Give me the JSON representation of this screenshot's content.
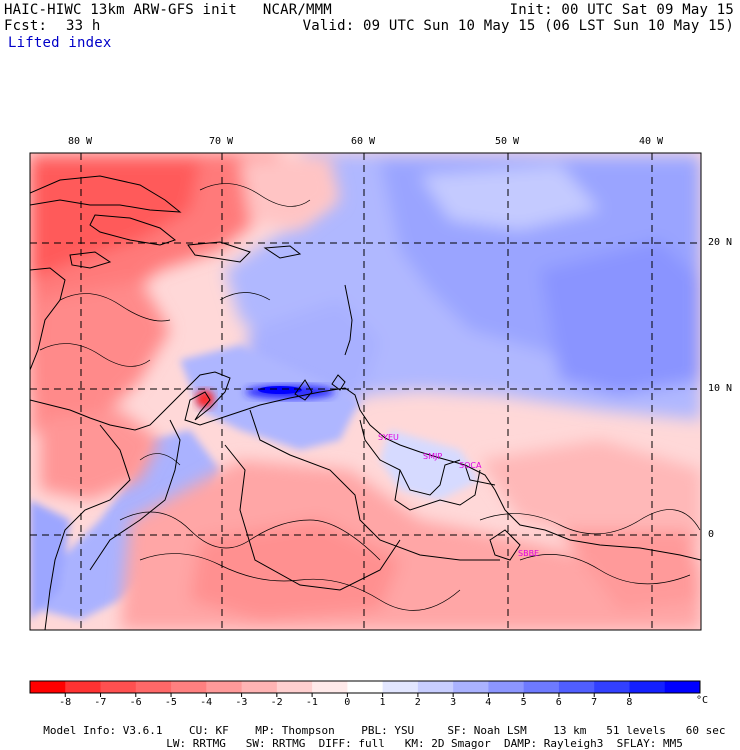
{
  "header": {
    "model_line": "HAIC-HIWC 13km ARW-GFS init   NCAR/MMM",
    "init": "Init: 00 UTC Sat 09 May 15",
    "fcst_label": "Fcst:",
    "fcst_value": "33 h",
    "valid": "Valid: 09 UTC Sun 10 May 15 (06 LST Sun 10 May 15)",
    "field": "Lifted index"
  },
  "map": {
    "lon_labels": [
      "80 W",
      "70 W",
      "60 W",
      "50 W",
      "40 W"
    ],
    "lat_labels": [
      "20 N",
      "10 N",
      "0"
    ],
    "station_labels": [
      "SYEU",
      "SMJP",
      "SOCA",
      "SBBE"
    ],
    "colors": {
      "neg": "#ff2828",
      "pos": "#2828ff",
      "station": "#e000e0",
      "grid": "#000000"
    }
  },
  "colorbar": {
    "tick_labels": [
      "-8",
      "-7",
      "-6",
      "-5",
      "-4",
      "-3",
      "-2",
      "-1",
      "0",
      "1",
      "2",
      "3",
      "4",
      "5",
      "6",
      "7",
      "8"
    ],
    "unit": "°C",
    "colors": [
      "#ff0000",
      "#ff3232",
      "#ff5050",
      "#ff6868",
      "#ff8080",
      "#ff9a9a",
      "#ffb4b4",
      "#ffd0d0",
      "#ffeaea",
      "#ffffff",
      "#e2e6ff",
      "#c8ceff",
      "#aab2ff",
      "#8c96ff",
      "#6e7aff",
      "#505eff",
      "#3240ff",
      "#1420ff",
      "#0000ff"
    ]
  },
  "footer": {
    "line1": [
      "Model Info: V3.6.1",
      "CU: KF",
      "MP: Thompson",
      "PBL: YSU",
      "SF: Noah LSM",
      "13 km",
      "51 levels",
      "60 sec"
    ],
    "line2": [
      "LW: RRTMG",
      "SW: RRTMG",
      "DIFF: full",
      "KM: 2D Smagor",
      "DAMP: Rayleigh3",
      "SFLAY: MM5"
    ]
  }
}
